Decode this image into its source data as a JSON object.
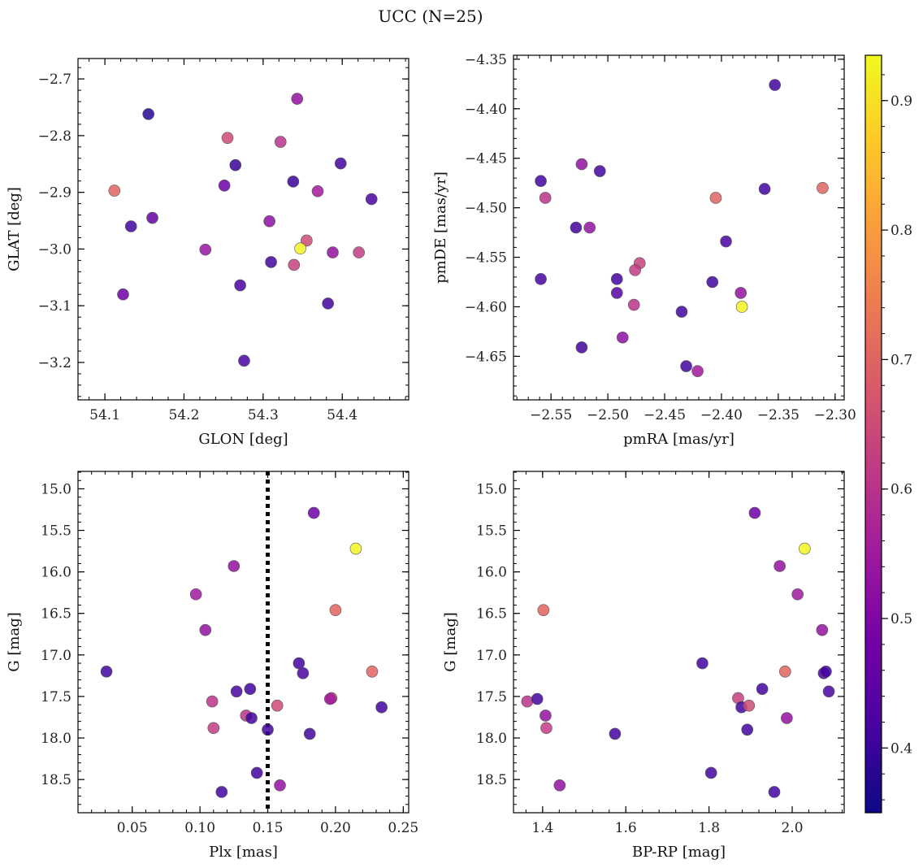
{
  "title": "UCC (N=25)",
  "colorbar": {
    "range": [
      0.35,
      0.935
    ],
    "ticks": [
      0.4,
      0.5,
      0.6,
      0.7,
      0.8,
      0.9
    ],
    "tick_labels": [
      "0.4",
      "0.5",
      "0.6",
      "0.7",
      "0.8",
      "0.9"
    ],
    "colormap": [
      "#0d0887",
      "#46039f",
      "#7201a8",
      "#9c179e",
      "#bd3786",
      "#d8576b",
      "#ed7953",
      "#fb9f3a",
      "#fdca26",
      "#f0f921"
    ]
  },
  "chart_data": [
    {
      "type": "scatter",
      "xlabel": "GLON [deg]",
      "ylabel": "GLAT [deg]",
      "xlim": [
        54.066,
        54.484
      ],
      "ylim": [
        -3.266,
        -2.664
      ],
      "y_inverted": false,
      "xticks": [
        54.1,
        54.2,
        54.3,
        54.4
      ],
      "xtick_labels": [
        "54.1",
        "54.2",
        "54.3",
        "54.4"
      ],
      "yticks": [
        -3.2,
        -3.1,
        -3.0,
        -2.9,
        -2.8,
        -2.7
      ],
      "ytick_labels": [
        "−3.2",
        "−3.1",
        "−3.0",
        "−2.9",
        "−2.8",
        "−2.7"
      ],
      "points": [
        {
          "x": 54.155,
          "y": -2.762,
          "c": 0.38
        },
        {
          "x": 54.343,
          "y": -2.735,
          "c": 0.53
        },
        {
          "x": 54.255,
          "y": -2.804,
          "c": 0.65
        },
        {
          "x": 54.322,
          "y": -2.811,
          "c": 0.6
        },
        {
          "x": 54.265,
          "y": -2.852,
          "c": 0.4
        },
        {
          "x": 54.398,
          "y": -2.849,
          "c": 0.41
        },
        {
          "x": 54.338,
          "y": -2.881,
          "c": 0.4
        },
        {
          "x": 54.251,
          "y": -2.888,
          "c": 0.47
        },
        {
          "x": 54.369,
          "y": -2.898,
          "c": 0.55
        },
        {
          "x": 54.112,
          "y": -2.897,
          "c": 0.7
        },
        {
          "x": 54.437,
          "y": -2.912,
          "c": 0.42
        },
        {
          "x": 54.16,
          "y": -2.945,
          "c": 0.46
        },
        {
          "x": 54.308,
          "y": -2.951,
          "c": 0.52
        },
        {
          "x": 54.133,
          "y": -2.96,
          "c": 0.41
        },
        {
          "x": 54.355,
          "y": -2.985,
          "c": 0.65
        },
        {
          "x": 54.347,
          "y": -2.999,
          "c": 0.93
        },
        {
          "x": 54.227,
          "y": -3.001,
          "c": 0.54
        },
        {
          "x": 54.388,
          "y": -3.006,
          "c": 0.53
        },
        {
          "x": 54.421,
          "y": -3.006,
          "c": 0.62
        },
        {
          "x": 54.31,
          "y": -3.023,
          "c": 0.41
        },
        {
          "x": 54.339,
          "y": -3.028,
          "c": 0.63
        },
        {
          "x": 54.271,
          "y": -3.064,
          "c": 0.42
        },
        {
          "x": 54.123,
          "y": -3.08,
          "c": 0.47
        },
        {
          "x": 54.382,
          "y": -3.096,
          "c": 0.41
        },
        {
          "x": 54.276,
          "y": -3.197,
          "c": 0.42
        }
      ]
    },
    {
      "type": "scatter",
      "xlabel": "pmRA [mas/yr]",
      "ylabel": "pmDE [mas/yr]",
      "xlim": [
        -2.583,
        -2.292
      ],
      "ylim": [
        -4.694,
        -4.346
      ],
      "y_inverted": false,
      "xticks": [
        -2.55,
        -2.5,
        -2.45,
        -2.4,
        -2.35,
        -2.3
      ],
      "xtick_labels": [
        "−2.55",
        "−2.50",
        "−2.45",
        "−2.40",
        "−2.35",
        "−2.30"
      ],
      "yticks": [
        -4.65,
        -4.6,
        -4.55,
        -4.5,
        -4.45,
        -4.4,
        -4.35
      ],
      "ytick_labels": [
        "−4.65",
        "−4.60",
        "−4.55",
        "−4.50",
        "−4.45",
        "−4.40",
        "−4.35"
      ],
      "points": [
        {
          "x": -2.353,
          "y": -4.376,
          "c": 0.41
        },
        {
          "x": -2.523,
          "y": -4.456,
          "c": 0.53
        },
        {
          "x": -2.507,
          "y": -4.463,
          "c": 0.41
        },
        {
          "x": -2.559,
          "y": -4.473,
          "c": 0.41
        },
        {
          "x": -2.362,
          "y": -4.481,
          "c": 0.41
        },
        {
          "x": -2.311,
          "y": -4.48,
          "c": 0.7
        },
        {
          "x": -2.555,
          "y": -4.49,
          "c": 0.6
        },
        {
          "x": -2.405,
          "y": -4.49,
          "c": 0.7
        },
        {
          "x": -2.528,
          "y": -4.52,
          "c": 0.41
        },
        {
          "x": -2.516,
          "y": -4.52,
          "c": 0.53
        },
        {
          "x": -2.396,
          "y": -4.534,
          "c": 0.42
        },
        {
          "x": -2.472,
          "y": -4.556,
          "c": 0.63
        },
        {
          "x": -2.476,
          "y": -4.563,
          "c": 0.62
        },
        {
          "x": -2.559,
          "y": -4.572,
          "c": 0.42
        },
        {
          "x": -2.492,
          "y": -4.572,
          "c": 0.41
        },
        {
          "x": -2.408,
          "y": -4.575,
          "c": 0.41
        },
        {
          "x": -2.492,
          "y": -4.586,
          "c": 0.44
        },
        {
          "x": -2.383,
          "y": -4.586,
          "c": 0.53
        },
        {
          "x": -2.477,
          "y": -4.598,
          "c": 0.6
        },
        {
          "x": -2.382,
          "y": -4.6,
          "c": 0.93
        },
        {
          "x": -2.435,
          "y": -4.605,
          "c": 0.41
        },
        {
          "x": -2.487,
          "y": -4.631,
          "c": 0.52
        },
        {
          "x": -2.523,
          "y": -4.641,
          "c": 0.41
        },
        {
          "x": -2.431,
          "y": -4.66,
          "c": 0.41
        },
        {
          "x": -2.421,
          "y": -4.665,
          "c": 0.55
        }
      ]
    },
    {
      "type": "scatter",
      "xlabel": "Plx [mas]",
      "ylabel": "G [mag]",
      "xlim": [
        0.01,
        0.254
      ],
      "ylim": [
        18.9,
        14.79
      ],
      "y_inverted": true,
      "vline": {
        "x": 0.15,
        "style": "dotted"
      },
      "xticks": [
        0.05,
        0.1,
        0.15,
        0.2,
        0.25
      ],
      "xtick_labels": [
        "0.05",
        "0.10",
        "0.15",
        "0.20",
        "0.25"
      ],
      "yticks": [
        15.0,
        15.5,
        16.0,
        16.5,
        17.0,
        17.5,
        18.0,
        18.5
      ],
      "ytick_labels": [
        "15.0",
        "15.5",
        "16.0",
        "16.5",
        "17.0",
        "17.5",
        "18.0",
        "18.5"
      ],
      "points": [
        {
          "x": 0.184,
          "y": 15.29,
          "c": 0.47
        },
        {
          "x": 0.215,
          "y": 15.72,
          "c": 0.93
        },
        {
          "x": 0.125,
          "y": 15.93,
          "c": 0.53
        },
        {
          "x": 0.097,
          "y": 16.27,
          "c": 0.55
        },
        {
          "x": 0.2,
          "y": 16.46,
          "c": 0.7
        },
        {
          "x": 0.104,
          "y": 16.7,
          "c": 0.53
        },
        {
          "x": 0.031,
          "y": 17.2,
          "c": 0.41
        },
        {
          "x": 0.227,
          "y": 17.2,
          "c": 0.7
        },
        {
          "x": 0.173,
          "y": 17.1,
          "c": 0.41
        },
        {
          "x": 0.176,
          "y": 17.22,
          "c": 0.42
        },
        {
          "x": 0.137,
          "y": 17.41,
          "c": 0.41
        },
        {
          "x": 0.127,
          "y": 17.44,
          "c": 0.42
        },
        {
          "x": 0.197,
          "y": 17.52,
          "c": 0.63
        },
        {
          "x": 0.196,
          "y": 17.53,
          "c": 0.55
        },
        {
          "x": 0.109,
          "y": 17.56,
          "c": 0.6
        },
        {
          "x": 0.157,
          "y": 17.61,
          "c": 0.65
        },
        {
          "x": 0.234,
          "y": 17.63,
          "c": 0.41
        },
        {
          "x": 0.134,
          "y": 17.73,
          "c": 0.6
        },
        {
          "x": 0.138,
          "y": 17.76,
          "c": 0.41
        },
        {
          "x": 0.11,
          "y": 17.88,
          "c": 0.62
        },
        {
          "x": 0.15,
          "y": 17.9,
          "c": 0.41
        },
        {
          "x": 0.181,
          "y": 17.95,
          "c": 0.41
        },
        {
          "x": 0.142,
          "y": 18.42,
          "c": 0.41
        },
        {
          "x": 0.159,
          "y": 18.57,
          "c": 0.53
        },
        {
          "x": 0.116,
          "y": 18.65,
          "c": 0.41
        }
      ]
    },
    {
      "type": "scatter",
      "xlabel": "BP-RP [mag]",
      "ylabel": "G [mag]",
      "xlim": [
        1.33,
        2.125
      ],
      "ylim": [
        18.9,
        14.79
      ],
      "y_inverted": true,
      "xticks": [
        1.4,
        1.6,
        1.8,
        2.0
      ],
      "xtick_labels": [
        "1.4",
        "1.6",
        "1.8",
        "2.0"
      ],
      "yticks": [
        15.0,
        15.5,
        16.0,
        16.5,
        17.0,
        17.5,
        18.0,
        18.5
      ],
      "ytick_labels": [
        "15.0",
        "15.5",
        "16.0",
        "16.5",
        "17.0",
        "17.5",
        "18.0",
        "18.5"
      ],
      "points": [
        {
          "x": 1.91,
          "y": 15.29,
          "c": 0.47
        },
        {
          "x": 2.03,
          "y": 15.72,
          "c": 0.93
        },
        {
          "x": 1.97,
          "y": 15.93,
          "c": 0.53
        },
        {
          "x": 1.402,
          "y": 16.46,
          "c": 0.7
        },
        {
          "x": 2.013,
          "y": 16.27,
          "c": 0.55
        },
        {
          "x": 2.072,
          "y": 16.7,
          "c": 0.53
        },
        {
          "x": 1.784,
          "y": 17.1,
          "c": 0.41
        },
        {
          "x": 1.983,
          "y": 17.2,
          "c": 0.7
        },
        {
          "x": 2.076,
          "y": 17.22,
          "c": 0.42
        },
        {
          "x": 2.081,
          "y": 17.2,
          "c": 0.41
        },
        {
          "x": 1.928,
          "y": 17.41,
          "c": 0.41
        },
        {
          "x": 2.088,
          "y": 17.44,
          "c": 0.42
        },
        {
          "x": 1.363,
          "y": 17.56,
          "c": 0.6
        },
        {
          "x": 1.387,
          "y": 17.53,
          "c": 0.41
        },
        {
          "x": 1.87,
          "y": 17.52,
          "c": 0.63
        },
        {
          "x": 1.878,
          "y": 17.63,
          "c": 0.41
        },
        {
          "x": 1.896,
          "y": 17.61,
          "c": 0.65
        },
        {
          "x": 1.407,
          "y": 17.73,
          "c": 0.53
        },
        {
          "x": 1.987,
          "y": 17.76,
          "c": 0.53
        },
        {
          "x": 1.409,
          "y": 17.88,
          "c": 0.62
        },
        {
          "x": 1.892,
          "y": 17.9,
          "c": 0.41
        },
        {
          "x": 1.574,
          "y": 17.95,
          "c": 0.41
        },
        {
          "x": 1.805,
          "y": 18.42,
          "c": 0.41
        },
        {
          "x": 1.441,
          "y": 18.57,
          "c": 0.53
        },
        {
          "x": 1.957,
          "y": 18.65,
          "c": 0.41
        }
      ]
    }
  ]
}
